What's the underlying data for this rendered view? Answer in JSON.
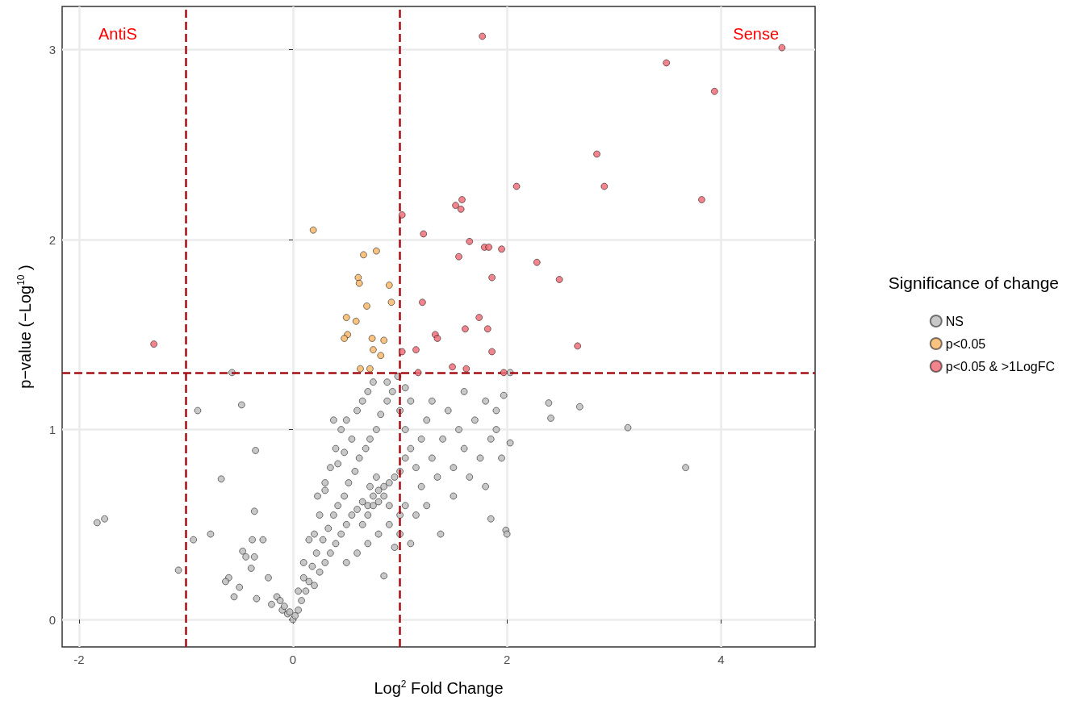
{
  "chart_data": {
    "type": "scatter",
    "xlabel": "Log$^{2}$ Fold Change",
    "ylabel": "p−value (−Log$^{10}$ )",
    "legend_title": "Significance of change",
    "xlim": [
      -2.157,
      4.88
    ],
    "ylim": [
      -0.144,
      3.227
    ],
    "xticks": [
      -2,
      0,
      2,
      4
    ],
    "yticks": [
      0,
      1,
      2,
      3
    ],
    "grid": true,
    "legend": "right",
    "marker": "circle",
    "annotations": [
      "AntiS",
      "Sense"
    ],
    "ref_lines": [
      {
        "axis": "x",
        "value": -1,
        "color": "#a50f15",
        "line_style": "dashed"
      },
      {
        "axis": "x",
        "value": 1,
        "color": "#a50f15",
        "line_style": "dashed"
      },
      {
        "axis": "y",
        "value": 1.3,
        "color": "#a50f15",
        "line_style": "dashed"
      }
    ],
    "series": [
      {
        "name": "NS",
        "color": "#bebebe",
        "x": [
          -0.57,
          -0.48,
          -0.89,
          -0.35,
          -0.67,
          -0.36,
          -1.83,
          -1.76,
          -0.93,
          -0.77,
          -1.07,
          3.13,
          3.67,
          2.68,
          2.39,
          2.41,
          2.03,
          1.85,
          1.99,
          2.0,
          1.38,
          2.03,
          -0.6,
          -0.39,
          -0.47,
          -0.44,
          -0.36,
          -0.38,
          -0.28,
          -0.23,
          -0.63,
          -0.5,
          -0.34,
          -0.55,
          -0.15,
          -0.2,
          -0.1,
          -0.05,
          0,
          0.02,
          -0.03,
          0.05,
          -0.08,
          0.08,
          -0.12,
          0.12,
          0.15,
          0.1,
          0.2,
          0.18,
          0.25,
          0.22,
          0.3,
          0.28,
          0.35,
          0.33,
          0.4,
          0.38,
          0.45,
          0.42,
          0.5,
          0.48,
          0.55,
          0.52,
          0.6,
          0.58,
          0.65,
          0.62,
          0.7,
          0.68,
          0.75,
          0.72,
          0.8,
          0.78,
          0.85,
          0.82,
          0.9,
          0.88,
          0.95,
          0.93,
          1.0,
          1.0,
          1.05,
          1.05,
          1.1,
          1.1,
          1.15,
          1.2,
          1.2,
          1.25,
          1.3,
          1.3,
          1.35,
          1.4,
          1.45,
          1.5,
          1.5,
          1.55,
          1.6,
          1.6,
          1.65,
          1.7,
          1.75,
          1.8,
          1.8,
          1.85,
          1.9,
          1.95,
          1.97,
          1.9,
          0.5,
          0.6,
          0.7,
          0.8,
          0.9,
          1.0,
          1.0,
          1.05,
          0.85,
          0.95,
          1.15,
          1.25,
          1.1,
          0.2,
          0.25,
          0.3,
          0.35,
          0.4,
          0.45,
          0.5,
          0.55,
          0.6,
          0.65,
          0.7,
          0.75,
          0.05,
          0.1,
          0.15,
          0.23,
          0.3,
          0.38,
          0.42,
          0.48,
          0.98,
          1.05,
          0.88,
          0.7,
          0.75,
          0.8,
          0.72,
          0.85,
          0.9,
          0.65,
          0.78
        ],
        "values": [
          1.3,
          1.13,
          1.1,
          0.89,
          0.74,
          0.57,
          0.51,
          0.53,
          0.42,
          0.45,
          0.26,
          1.01,
          0.8,
          1.12,
          1.14,
          1.06,
          1.3,
          0.53,
          0.47,
          0.45,
          0.45,
          0.93,
          0.22,
          0.27,
          0.36,
          0.33,
          0.33,
          0.42,
          0.42,
          0.22,
          0.2,
          0.17,
          0.11,
          0.12,
          0.12,
          0.08,
          0.05,
          0.03,
          0,
          0.02,
          0.04,
          0.05,
          0.07,
          0.1,
          0.1,
          0.15,
          0.2,
          0.22,
          0.18,
          0.28,
          0.25,
          0.35,
          0.3,
          0.42,
          0.35,
          0.48,
          0.4,
          0.55,
          0.45,
          0.6,
          0.5,
          0.65,
          0.55,
          0.72,
          0.58,
          0.78,
          0.62,
          0.85,
          0.6,
          0.9,
          0.65,
          0.95,
          0.68,
          1.0,
          0.7,
          1.08,
          0.72,
          1.15,
          0.75,
          1.2,
          0.78,
          1.1,
          0.85,
          1.0,
          0.9,
          1.15,
          0.8,
          0.95,
          0.7,
          1.05,
          0.85,
          1.15,
          0.75,
          0.95,
          1.1,
          0.8,
          0.65,
          1.0,
          0.9,
          1.2,
          0.75,
          1.05,
          0.85,
          1.15,
          0.7,
          0.95,
          1.0,
          0.85,
          1.18,
          1.1,
          0.3,
          0.35,
          0.4,
          0.45,
          0.5,
          0.45,
          0.55,
          0.6,
          0.23,
          0.38,
          0.55,
          0.6,
          0.4,
          0.45,
          0.55,
          0.68,
          0.8,
          0.9,
          1.0,
          1.05,
          0.95,
          1.1,
          1.15,
          1.2,
          1.25,
          0.15,
          0.3,
          0.42,
          0.65,
          0.72,
          1.05,
          0.82,
          0.88,
          1.28,
          1.22,
          1.25,
          0.55,
          0.6,
          0.62,
          0.7,
          0.65,
          0.6,
          0.5,
          0.75
        ]
      },
      {
        "name": "p<0.05",
        "color": "#f7b96b",
        "x": [
          0.19,
          0.66,
          0.78,
          0.61,
          0.62,
          0.9,
          0.92,
          0.69,
          0.5,
          0.59,
          0.51,
          0.48,
          0.74,
          0.85,
          0.75,
          0.82,
          0.63,
          0.72
        ],
        "values": [
          2.05,
          1.92,
          1.94,
          1.8,
          1.77,
          1.76,
          1.67,
          1.65,
          1.59,
          1.57,
          1.5,
          1.48,
          1.48,
          1.47,
          1.42,
          1.39,
          1.32,
          1.32
        ]
      },
      {
        "name": "p<0.05 & >1LogFC",
        "color": "#ee6f78",
        "x": [
          1.77,
          4.57,
          3.49,
          3.94,
          2.84,
          2.91,
          2.09,
          3.82,
          1.58,
          1.52,
          1.57,
          1.02,
          1.22,
          1.65,
          1.79,
          1.83,
          1.95,
          1.55,
          2.28,
          1.86,
          2.49,
          1.21,
          1.74,
          1.82,
          1.61,
          1.33,
          1.35,
          -1.3,
          1.15,
          1.86,
          1.02,
          2.66,
          1.49,
          1.62,
          1.17,
          1.97
        ],
        "values": [
          3.07,
          3.01,
          2.93,
          2.78,
          2.45,
          2.28,
          2.28,
          2.21,
          2.21,
          2.18,
          2.16,
          2.13,
          2.03,
          1.99,
          1.96,
          1.96,
          1.95,
          1.91,
          1.88,
          1.8,
          1.79,
          1.67,
          1.59,
          1.53,
          1.53,
          1.5,
          1.48,
          1.45,
          1.42,
          1.41,
          1.41,
          1.44,
          1.33,
          1.32,
          1.3,
          1.3
        ]
      }
    ]
  }
}
